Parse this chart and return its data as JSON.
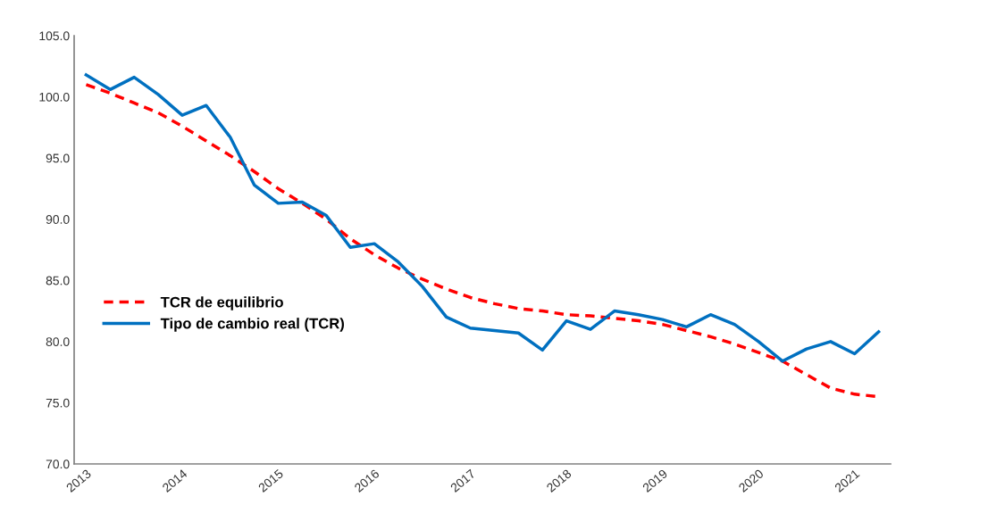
{
  "chart_data": {
    "type": "line",
    "x": [
      2013,
      2013.25,
      2013.5,
      2013.75,
      2014,
      2014.25,
      2014.5,
      2014.75,
      2015,
      2015.25,
      2015.5,
      2015.75,
      2016,
      2016.25,
      2016.5,
      2016.75,
      2017,
      2017.25,
      2017.5,
      2017.75,
      2018,
      2018.25,
      2018.5,
      2018.75,
      2019,
      2019.25,
      2019.5,
      2019.75,
      2020,
      2020.25,
      2020.5,
      2020.75,
      2021,
      2021.25
    ],
    "xlim": [
      2012.875,
      2021.375
    ],
    "xticks": [
      2013,
      2014,
      2015,
      2016,
      2017,
      2018,
      2019,
      2020,
      2021
    ],
    "ylim": [
      70,
      105
    ],
    "yticks": [
      {
        "value": 70,
        "label": "70.0"
      },
      {
        "value": 75,
        "label": "75.0"
      },
      {
        "value": 80,
        "label": "80.0"
      },
      {
        "value": 85,
        "label": "85.0"
      },
      {
        "value": 90,
        "label": "90.0"
      },
      {
        "value": 95,
        "label": "95.0"
      },
      {
        "value": 100,
        "label": "100.0"
      },
      {
        "value": 105,
        "label": "105.0"
      }
    ],
    "grid": false,
    "legend": "left",
    "series": [
      {
        "name": "TCR de equilibrio",
        "color": "#ff0000",
        "line_style": "dashed",
        "values": [
          101.0,
          100.3,
          99.5,
          98.7,
          97.6,
          96.4,
          95.2,
          93.9,
          92.5,
          91.3,
          90.0,
          88.4,
          87.1,
          86.0,
          85.1,
          84.3,
          83.6,
          83.1,
          82.7,
          82.5,
          82.2,
          82.1,
          81.9,
          81.7,
          81.4,
          80.9,
          80.4,
          79.8,
          79.1,
          78.4,
          77.3,
          76.2,
          75.7,
          75.5
        ]
      },
      {
        "name": "Tipo de cambio real (TCR)",
        "color": "#0070c0",
        "line_style": "solid",
        "values": [
          101.8,
          100.6,
          101.6,
          100.2,
          98.5,
          99.3,
          96.7,
          92.8,
          91.3,
          91.4,
          90.3,
          87.7,
          88.0,
          86.5,
          84.5,
          82.0,
          81.1,
          80.9,
          80.7,
          79.3,
          81.7,
          81.0,
          82.5,
          82.2,
          81.8,
          81.2,
          82.2,
          81.4,
          80.0,
          78.4,
          79.4,
          80.0,
          79.0,
          80.8
        ]
      }
    ]
  }
}
